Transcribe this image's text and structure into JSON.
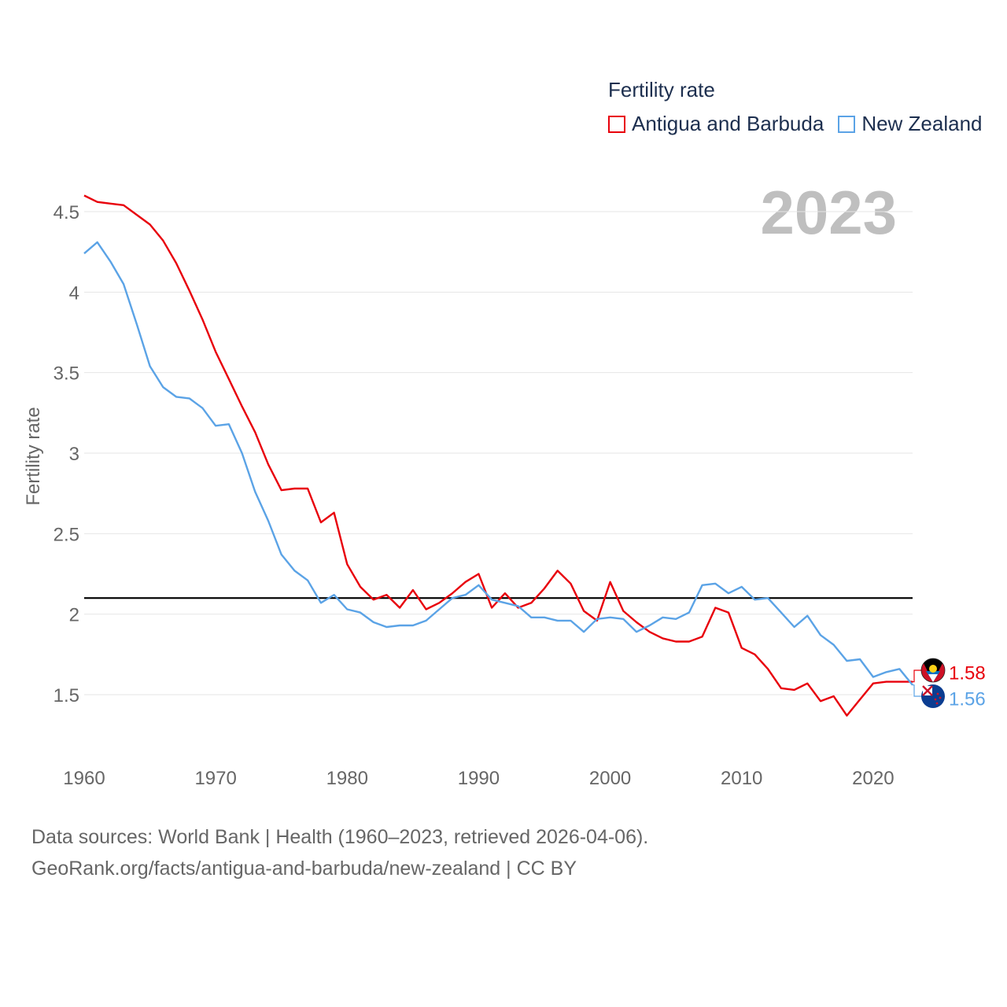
{
  "legend": {
    "title": "Fertility rate",
    "items": [
      {
        "label": "Antigua and Barbuda",
        "color": "#e8000b"
      },
      {
        "label": "New Zealand",
        "color": "#5ba3e6"
      }
    ]
  },
  "year_label": "2023",
  "footer": {
    "line1": "Data sources: World Bank | Health (1960–2023, retrieved 2026-04-06).",
    "line2": "GeoRank.org/facts/antigua-and-barbuda/new-zealand | CC BY"
  },
  "chart_data": {
    "type": "line",
    "title": "Fertility rate",
    "xlabel": "",
    "ylabel": "Fertility rate",
    "xlim": [
      1960,
      2023
    ],
    "ylim": [
      1.2,
      4.65
    ],
    "x_ticks": [
      1960,
      1970,
      1980,
      1990,
      2000,
      2010,
      2020
    ],
    "y_ticks": [
      1.5,
      2,
      2.5,
      3,
      3.5,
      4,
      4.5
    ],
    "y_tick_labels": [
      "1.5",
      "2",
      "2.5",
      "3",
      "3.5",
      "4",
      "4.5"
    ],
    "reference_line": {
      "y": 2.1,
      "color": "#000000"
    },
    "x": [
      1960,
      1961,
      1962,
      1963,
      1964,
      1965,
      1966,
      1967,
      1968,
      1969,
      1970,
      1971,
      1972,
      1973,
      1974,
      1975,
      1976,
      1977,
      1978,
      1979,
      1980,
      1981,
      1982,
      1983,
      1984,
      1985,
      1986,
      1987,
      1988,
      1989,
      1990,
      1991,
      1992,
      1993,
      1994,
      1995,
      1996,
      1997,
      1998,
      1999,
      2000,
      2001,
      2002,
      2003,
      2004,
      2005,
      2006,
      2007,
      2008,
      2009,
      2010,
      2011,
      2012,
      2013,
      2014,
      2015,
      2016,
      2017,
      2018,
      2019,
      2020,
      2021,
      2022,
      2023
    ],
    "series": [
      {
        "name": "Antigua and Barbuda",
        "color": "#e8000b",
        "end_label": "1.58",
        "values": [
          4.6,
          4.56,
          4.55,
          4.54,
          4.48,
          4.42,
          4.32,
          4.18,
          4.01,
          3.83,
          3.63,
          3.46,
          3.29,
          3.13,
          2.93,
          2.77,
          2.78,
          2.78,
          2.57,
          2.63,
          2.31,
          2.17,
          2.09,
          2.12,
          2.04,
          2.15,
          2.03,
          2.07,
          2.13,
          2.2,
          2.25,
          2.04,
          2.13,
          2.04,
          2.07,
          2.16,
          2.27,
          2.19,
          2.02,
          1.96,
          2.2,
          2.02,
          1.95,
          1.89,
          1.85,
          1.83,
          1.83,
          1.86,
          2.04,
          2.01,
          1.79,
          1.75,
          1.66,
          1.54,
          1.53,
          1.57,
          1.46,
          1.49,
          1.37,
          1.47,
          1.57,
          1.58,
          1.58,
          1.58
        ]
      },
      {
        "name": "New Zealand",
        "color": "#5ba3e6",
        "end_label": "1.56",
        "values": [
          4.24,
          4.31,
          4.19,
          4.05,
          3.8,
          3.54,
          3.41,
          3.35,
          3.34,
          3.28,
          3.17,
          3.18,
          3.0,
          2.76,
          2.58,
          2.37,
          2.27,
          2.21,
          2.07,
          2.12,
          2.03,
          2.01,
          1.95,
          1.92,
          1.93,
          1.93,
          1.96,
          2.03,
          2.1,
          2.12,
          2.18,
          2.09,
          2.07,
          2.05,
          1.98,
          1.98,
          1.96,
          1.96,
          1.89,
          1.97,
          1.98,
          1.97,
          1.89,
          1.93,
          1.98,
          1.97,
          2.01,
          2.18,
          2.19,
          2.13,
          2.17,
          2.09,
          2.1,
          2.01,
          1.92,
          1.99,
          1.87,
          1.81,
          1.71,
          1.72,
          1.61,
          1.64,
          1.66,
          1.56
        ]
      }
    ]
  }
}
